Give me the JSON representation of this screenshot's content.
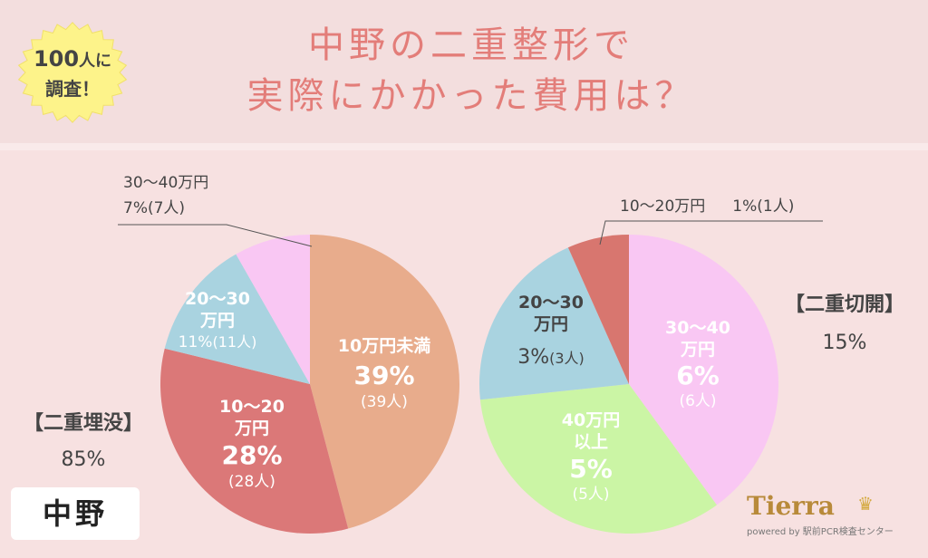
{
  "badge": {
    "count": "100",
    "unit": "人に",
    "line2": "調査！"
  },
  "title": {
    "line1": "中野の二重整形で",
    "line2": "実際にかかった費用は？"
  },
  "left_summary": {
    "label": "【二重埋没】",
    "value": "85%"
  },
  "right_summary": {
    "label": "【二重切開】",
    "value": "15%"
  },
  "location_tag": "中野",
  "logo": {
    "name": "Tierra",
    "sub": "powered by 駅前PCR検査センター"
  },
  "chart_data": [
    {
      "type": "pie",
      "title": "【二重埋没】 85%",
      "slices": [
        {
          "key": "a",
          "lines": [
            "10万円未満"
          ],
          "pct": "39%",
          "people": "(39人)",
          "value": 39,
          "color": "#e8ac8c",
          "text_color": "#ffffff"
        },
        {
          "key": "b",
          "lines": [
            "10〜20",
            "万円"
          ],
          "pct": "28%",
          "people": "(28人)",
          "value": 28,
          "color": "#db7878",
          "text_color": "#ffffff"
        },
        {
          "key": "c",
          "lines": [
            "20〜30",
            "万円"
          ],
          "pct": "11%",
          "people": "(11人)",
          "value": 11,
          "color": "#a9d3e0",
          "text_color": "#ffffff"
        },
        {
          "key": "d",
          "lines": [
            "30〜40万円"
          ],
          "pct": "7%",
          "people": "(7人)",
          "value": 7,
          "color": "#f9c7f3",
          "text_color": "#444444"
        }
      ]
    },
    {
      "type": "pie",
      "title": "【二重切開】 15%",
      "slices": [
        {
          "key": "a",
          "lines": [
            "30〜40",
            "万円"
          ],
          "pct": "6%",
          "people": "(6人)",
          "value": 6,
          "color": "#f9c7f3",
          "text_color": "#ffffff"
        },
        {
          "key": "b",
          "lines": [
            "40万円",
            "以上"
          ],
          "pct": "5%",
          "people": "(5人)",
          "value": 5,
          "color": "#cbf5a5",
          "text_color": "#ffffff"
        },
        {
          "key": "c",
          "lines": [
            "20〜30",
            "万円"
          ],
          "pct": "3%",
          "people": "(3人)",
          "value": 3,
          "color": "#a9d3e0",
          "text_color": "#444444"
        },
        {
          "key": "d",
          "lines": [
            "10〜20万円"
          ],
          "pct": "1%",
          "people": "(1人)",
          "value": 1,
          "color": "#d8766f",
          "text_color": "#444444"
        }
      ]
    }
  ]
}
